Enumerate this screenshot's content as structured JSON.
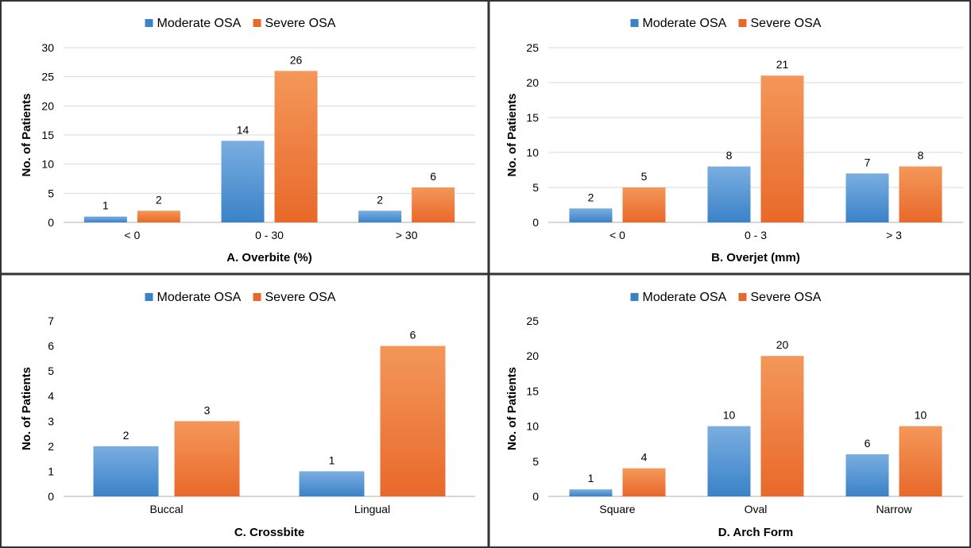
{
  "legend_labels": [
    "Moderate OSA",
    "Severe OSA"
  ],
  "colors": {
    "moderate_top": "#7aaee0",
    "moderate_bottom": "#3a82c8",
    "severe_top": "#f4975a",
    "severe_bottom": "#e8692a",
    "grid": "#d9d9d9",
    "axis": "#bfbfbf",
    "border": "#333333",
    "text": "#000000"
  },
  "chart_data": [
    {
      "type": "bar",
      "title": "",
      "xlabel": "A. Overbite (%)",
      "ylabel": "No. of Patients",
      "categories": [
        "< 0",
        "0 - 30",
        "> 30"
      ],
      "series": [
        {
          "name": "Moderate OSA",
          "values": [
            1,
            14,
            2
          ]
        },
        {
          "name": "Severe OSA",
          "values": [
            2,
            26,
            6
          ]
        }
      ],
      "ylim": [
        0,
        30
      ],
      "yticks": [
        0,
        5,
        10,
        15,
        20,
        25,
        30
      ],
      "grid": true,
      "legend": "top-center",
      "show_ylabel": true
    },
    {
      "type": "bar",
      "title": "",
      "xlabel": "B. Overjet (mm)",
      "ylabel": "No. of Patients",
      "categories": [
        "< 0",
        "0 - 3",
        "> 3"
      ],
      "series": [
        {
          "name": "Moderate OSA",
          "values": [
            2,
            8,
            7
          ]
        },
        {
          "name": "Severe OSA",
          "values": [
            5,
            21,
            8
          ]
        }
      ],
      "ylim": [
        0,
        25
      ],
      "yticks": [
        0,
        5,
        10,
        15,
        20,
        25
      ],
      "grid": true,
      "legend": "top-center",
      "show_ylabel": true
    },
    {
      "type": "bar",
      "title": "",
      "xlabel": "C. Crossbite",
      "ylabel": "No. of Patients",
      "categories": [
        "Buccal",
        "Lingual"
      ],
      "series": [
        {
          "name": "Moderate OSA",
          "values": [
            2,
            1
          ]
        },
        {
          "name": "Severe OSA",
          "values": [
            3,
            6
          ]
        }
      ],
      "ylim": [
        0,
        7
      ],
      "yticks": [
        0,
        1,
        2,
        3,
        4,
        5,
        6,
        7
      ],
      "grid": false,
      "legend": "top-center",
      "show_ylabel": true
    },
    {
      "type": "bar",
      "title": "",
      "xlabel": "D. Arch Form",
      "ylabel": "No. of Patients",
      "categories": [
        "Square",
        "Oval",
        "Narrow"
      ],
      "series": [
        {
          "name": "Moderate OSA",
          "values": [
            1,
            10,
            6
          ]
        },
        {
          "name": "Severe OSA",
          "values": [
            4,
            20,
            10
          ]
        }
      ],
      "ylim": [
        0,
        25
      ],
      "yticks": [
        0,
        5,
        10,
        15,
        20,
        25
      ],
      "grid": false,
      "legend": "top-center",
      "show_ylabel": true
    }
  ]
}
